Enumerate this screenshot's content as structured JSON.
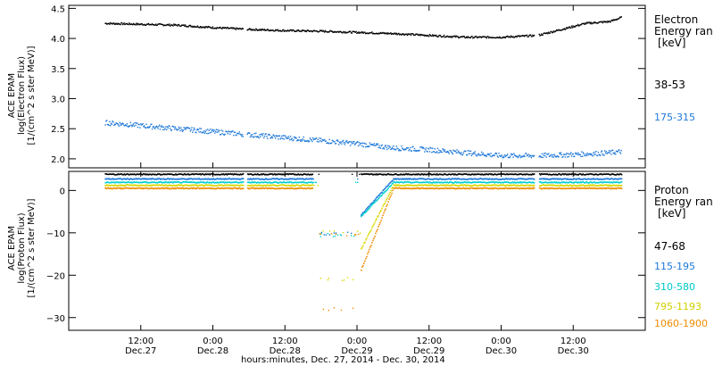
{
  "chart_data": [
    {
      "type": "scatter",
      "panel": "electron",
      "ylabel_lines": [
        "ACE EPAM",
        "log(Electron Flux)",
        "[1/(cm^2 s ster MeV)]"
      ],
      "ylim": [
        1.85,
        4.55
      ],
      "yticks": [
        2.0,
        2.5,
        3.0,
        3.5,
        4.0,
        4.5
      ],
      "ytick_labels": [
        "2.0",
        "2.5",
        "3.0",
        "3.5",
        "4.0",
        "4.5"
      ],
      "legend_title": [
        "Electron",
        "Energy ran",
        "[keV]"
      ],
      "series": [
        {
          "name": "38-53",
          "color": "#000000",
          "x": [
            6.0,
            18.0,
            24.0,
            30.0,
            36.0,
            42.0,
            48.0,
            54.0,
            60.0,
            66.0,
            72.0,
            78.0,
            84.0,
            86.0,
            90.0,
            92.0
          ],
          "y": [
            4.25,
            4.22,
            4.18,
            4.15,
            4.13,
            4.12,
            4.1,
            4.08,
            4.05,
            4.02,
            4.02,
            4.05,
            4.2,
            4.25,
            4.28,
            4.35
          ]
        },
        {
          "name": "175-315",
          "color": "#1e78d8",
          "x": [
            6.0,
            12.0,
            24.0,
            36.0,
            48.0,
            54.0,
            60.0,
            66.0,
            72.0,
            78.0,
            84.0,
            90.0,
            92.0
          ],
          "y": [
            2.6,
            2.55,
            2.45,
            2.35,
            2.25,
            2.18,
            2.15,
            2.1,
            2.05,
            2.05,
            2.07,
            2.1,
            2.12
          ]
        }
      ]
    },
    {
      "type": "scatter",
      "panel": "proton",
      "ylabel_lines": [
        "ACE EPAM",
        "log(Proton Flux)",
        "[1/(cm^2 s ster MeV)]"
      ],
      "ylim": [
        -33,
        4.5
      ],
      "yticks": [
        0,
        -10,
        -20,
        -30
      ],
      "ytick_labels": [
        "0",
        "−10",
        "−20",
        "−30"
      ],
      "legend_title": [
        "Proton",
        "Energy ran",
        "[keV]"
      ],
      "series": [
        {
          "name": "47-68",
          "color": "#000000",
          "x": [
            6.0,
            24.0,
            42.0,
            46.0,
            54.0,
            72.0,
            90.0,
            92.0
          ],
          "y": [
            3.8,
            3.8,
            3.8,
            3.8,
            3.8,
            3.8,
            3.8,
            3.8
          ]
        },
        {
          "name": "115-195",
          "color": "#1e78d8",
          "x": [
            6.0,
            24.0,
            42.0,
            44.0,
            46.0,
            54.0,
            72.0,
            92.0
          ],
          "y": [
            2.7,
            2.7,
            2.7,
            -9.8,
            -9.8,
            2.7,
            2.7,
            2.7
          ]
        },
        {
          "name": "310-580",
          "color": "#00d0d0",
          "x": [
            6.0,
            24.0,
            42.0,
            44.0,
            46.0,
            54.0,
            72.0,
            92.0
          ],
          "y": [
            1.9,
            1.9,
            1.9,
            -10.0,
            -10.0,
            1.9,
            1.9,
            1.9
          ]
        },
        {
          "name": "795-1193",
          "color": "#d8d800",
          "x": [
            6.0,
            24.0,
            42.0,
            44.0,
            46.0,
            54.0,
            72.0,
            92.0
          ],
          "y": [
            1.2,
            1.2,
            1.2,
            -21.0,
            -21.0,
            1.2,
            1.2,
            1.2
          ]
        },
        {
          "name": "1060-1900",
          "color": "#f08c00",
          "x": [
            6.0,
            24.0,
            42.0,
            44.0,
            46.0,
            54.0,
            72.0,
            92.0
          ],
          "y": [
            0.5,
            0.5,
            0.5,
            -10.5,
            -28.0,
            0.5,
            0.5,
            0.5
          ]
        }
      ]
    }
  ],
  "x_axis": {
    "xlim": [
      0,
      96
    ],
    "ticks": [
      {
        "hours": 12,
        "time": "12:00",
        "day": "Dec.27"
      },
      {
        "hours": 24,
        "time": "0:00",
        "day": "Dec.28"
      },
      {
        "hours": 36,
        "time": "12:00",
        "day": "Dec.28"
      },
      {
        "hours": 48,
        "time": "0:00",
        "day": "Dec.29"
      },
      {
        "hours": 60,
        "time": "12:00",
        "day": "Dec.29"
      },
      {
        "hours": 72,
        "time": "0:00",
        "day": "Dec.30"
      },
      {
        "hours": 84,
        "time": "12:00",
        "day": "Dec.30"
      }
    ],
    "label": "hours:minutes, Dec. 27, 2014 - Dec. 30, 2014"
  }
}
